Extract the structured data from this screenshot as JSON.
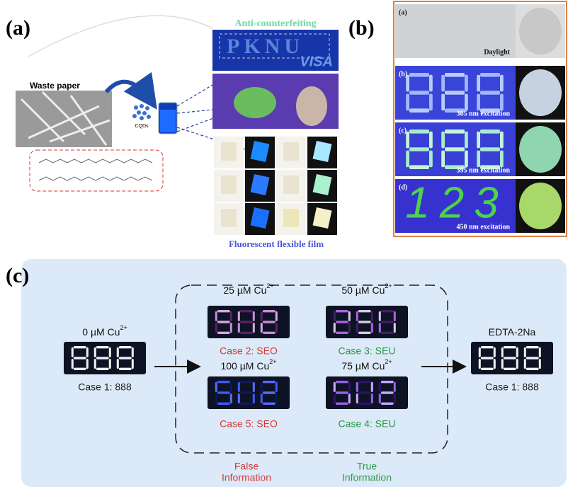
{
  "panel_a": {
    "label": "(a)",
    "waste_paper": "Waste paper",
    "cqds": "CQDs",
    "anti_counterfeiting": "Anti-counterfeiting",
    "card_text": "PKNU",
    "card_brand": "VISA",
    "film": "Fluorescent flexible film"
  },
  "panel_b": {
    "label": "(b)",
    "rows": [
      {
        "label": "(a)",
        "caption": "Daylight"
      },
      {
        "label": "(b)",
        "caption": "365 nm excitation"
      },
      {
        "label": "(c)",
        "caption": "395 nm excitation"
      },
      {
        "label": "(d)",
        "caption": "450 nm excitation",
        "display": "123"
      }
    ]
  },
  "panel_c": {
    "label": "(c)",
    "displays": [
      {
        "top": "0 µM Cu",
        "sup": "2+",
        "bottom": "Case 1: 888"
      },
      {
        "top": "25 µM Cu",
        "sup": "2+",
        "bottom": "Case 2: SEO"
      },
      {
        "top": "50 µM Cu",
        "sup": "2+",
        "bottom": "Case 3: SEU"
      },
      {
        "top": "100 µM Cu",
        "sup": "2+",
        "bottom": "Case 5: SEO"
      },
      {
        "top": "75 µM Cu",
        "sup": "2+",
        "bottom": "Case 4: SEU"
      },
      {
        "top": "EDTA-2Na",
        "bottom": "Case 1: 888"
      }
    ],
    "notes": [
      {
        "line1": "False",
        "line2": "Information"
      },
      {
        "line1": "True",
        "line2": "Information"
      }
    ]
  }
}
